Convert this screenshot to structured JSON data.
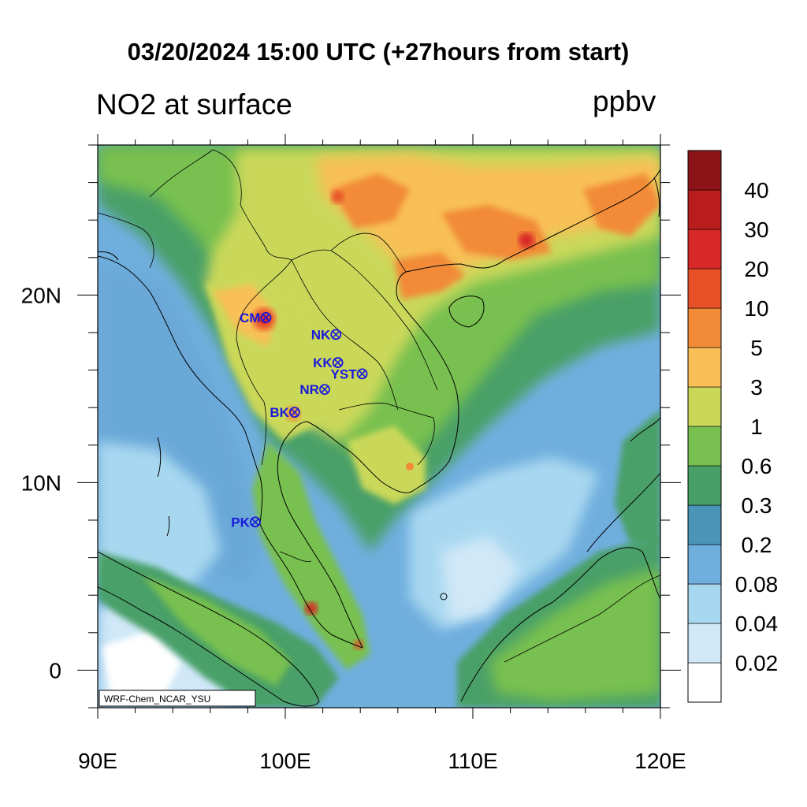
{
  "header": {
    "title": "03/20/2024 15:00 UTC (+27hours from start)",
    "variable": "NO2 at surface",
    "units": "ppbv"
  },
  "map": {
    "extent": {
      "lon_min": 90,
      "lon_max": 120,
      "lat_min": -2,
      "lat_max": 28
    },
    "x_ticks": [
      {
        "lon": 90,
        "label": "90E"
      },
      {
        "lon": 100,
        "label": "100E"
      },
      {
        "lon": 110,
        "label": "110E"
      },
      {
        "lon": 120,
        "label": "120E"
      }
    ],
    "y_ticks": [
      {
        "lat": 0,
        "label": "0"
      },
      {
        "lat": 10,
        "label": "10N"
      },
      {
        "lat": 20,
        "label": "20N"
      }
    ],
    "credit": "WRF-Chem_NCAR_YSU"
  },
  "colorbar": {
    "levels": [
      "0.02",
      "0.04",
      "0.08",
      "0.2",
      "0.3",
      "0.6",
      "1",
      "3",
      "5",
      "10",
      "20",
      "30",
      "40"
    ],
    "colors": [
      "#ffffff",
      "#d0e8f8",
      "#a8d8f0",
      "#70aede",
      "#4a94b8",
      "#48a068",
      "#78c050",
      "#cad85a",
      "#f8c056",
      "#f28a38",
      "#e85028",
      "#d82828",
      "#b81c1c",
      "#8c1418"
    ]
  },
  "stations": [
    {
      "name": "CM",
      "lon": 98.97,
      "lat": 18.8
    },
    {
      "name": "NK",
      "lon": 102.7,
      "lat": 17.9
    },
    {
      "name": "KK",
      "lon": 102.8,
      "lat": 16.4
    },
    {
      "name": "YST",
      "lon": 104.1,
      "lat": 15.8
    },
    {
      "name": "NR",
      "lon": 102.1,
      "lat": 14.97
    },
    {
      "name": "BK",
      "lon": 100.5,
      "lat": 13.75
    },
    {
      "name": "PK",
      "lon": 98.4,
      "lat": 7.9
    }
  ]
}
